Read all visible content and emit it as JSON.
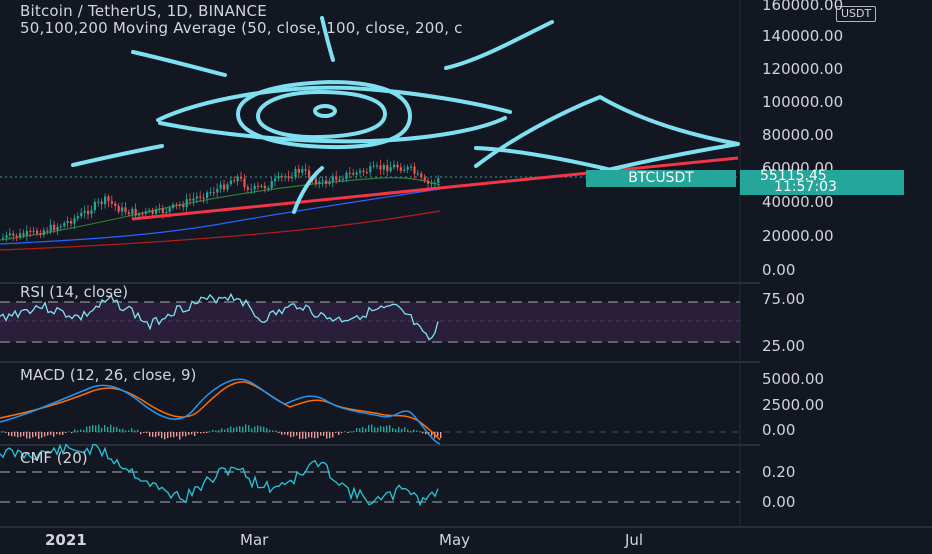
{
  "header": {
    "title": "Bitcoin / TetherUS, 1D, BINANCE",
    "indicator": "50,100,200 Moving Average (50, close, 100, close, 200, c"
  },
  "price_axis": {
    "currency_badge": "USDT",
    "labels": [
      "160000.00",
      "140000.00",
      "120000.00",
      "100000.00",
      "80000.00",
      "60000.00",
      "40000.00",
      "20000.00",
      "0.00"
    ]
  },
  "last_price": {
    "symbol": "BTCUSDT",
    "value": "55115.45",
    "countdown": "11:57:03"
  },
  "rsi": {
    "label": "RSI (14, close)",
    "axis": [
      "75.00",
      "25.00"
    ]
  },
  "macd": {
    "label": "MACD (12, 26, close, 9)",
    "axis": [
      "5000.00",
      "2500.00",
      "0.00"
    ]
  },
  "cmf": {
    "label": "CMF (20)",
    "axis": [
      "0.20",
      "0.00"
    ]
  },
  "time_axis": [
    "2021",
    "Mar",
    "May",
    "Jul"
  ],
  "colors": {
    "background": "#131722",
    "up": "#26a69a",
    "down": "#ef5350",
    "drawing": "#7ee0f0",
    "trendline": "#f23645",
    "rsi_band": "#2a1e3a"
  }
}
